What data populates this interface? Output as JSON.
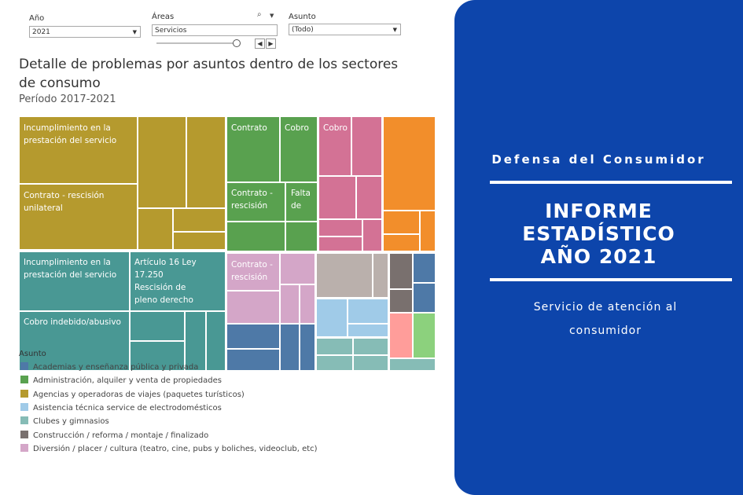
{
  "filters": {
    "year": {
      "label": "Año",
      "value": "2021"
    },
    "areas": {
      "label": "Áreas",
      "value": "Servicios"
    },
    "topic": {
      "label": "Asunto",
      "value": "(Todo)"
    }
  },
  "dashboard": {
    "title": "Detalle de problemas por asuntos dentro de los sectores de consumo",
    "subtitle": "Período 2017-2021"
  },
  "chart_data": {
    "type": "treemap",
    "labels": {
      "incumplimiento_1": "Incumplimiento en la prestación del servicio",
      "contrato_rescision_unilateral": "Contrato - rescisión unilateral",
      "incumplimiento_2": "Incumplimiento en la prestación del servicio",
      "articulo_16": "Artículo 16 Ley 17.250 Rescisión de pleno derecho",
      "cobro_indebido": "Cobro indebido/abusivo",
      "contrato": "Contrato",
      "cobro_green": "Cobro",
      "contrato_rescision": "Contrato - rescisión",
      "falta_de": "Falta de",
      "cobro_pink": "Cobro",
      "contrato_rescision_lilac": "Contrato - rescisión"
    },
    "legend_title": "Asunto",
    "legend": [
      {
        "label": "Academias y enseñanza pública y privada",
        "color": "#4e79a7"
      },
      {
        "label": "Administración, alquiler y venta de propiedades",
        "color": "#59a14f"
      },
      {
        "label": "Agencias y operadoras de viajes (paquetes turísticos)",
        "color": "#b59a2e"
      },
      {
        "label": "Asistencia técnica service de electrodomésticos",
        "color": "#a0cbe8"
      },
      {
        "label": "Clubes y gimnasios",
        "color": "#86bcb6"
      },
      {
        "label": "Construcción / reforma / montaje / finalizado",
        "color": "#79706e"
      },
      {
        "label": "Diversión / placer / cultura (teatro, cine, pubs y boliches, videoclub, etc)",
        "color": "#d4a6c8"
      }
    ]
  },
  "cover": {
    "organization": "Defensa del Consumidor",
    "title_lines": [
      "INFORME",
      "ESTADÍSTICO",
      "AÑO 2021"
    ],
    "subtitle": "Servicio de atención al consumidor"
  }
}
